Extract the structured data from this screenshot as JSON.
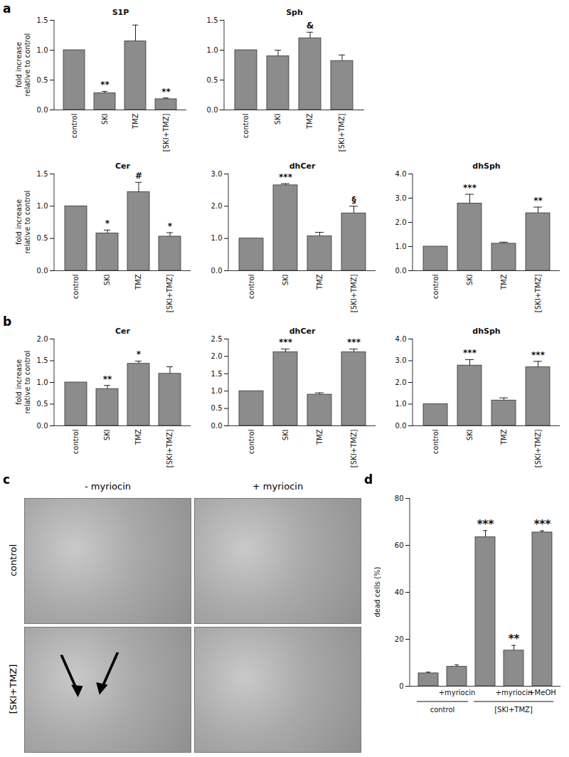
{
  "chart_data": [
    {
      "type": "bar",
      "title": "S1P",
      "y_label": "fold increase relative to control",
      "color": "#8c8c8c",
      "categories": [
        "control",
        "SKI",
        "TMZ",
        "[SKI+TMZ]"
      ],
      "values": [
        1.0,
        0.28,
        1.15,
        0.18
      ],
      "errors": [
        null,
        0.03,
        0.27,
        0.02
      ],
      "annotations": [
        null,
        "**",
        null,
        "**"
      ],
      "ylim": [
        0,
        1.5
      ],
      "yticks": [
        {
          "value": 0,
          "label": "0.0"
        },
        {
          "value": 0.5,
          "label": "0.5"
        },
        {
          "value": 1,
          "label": "1.0"
        },
        {
          "value": 1.5,
          "label": "1.5"
        }
      ]
    },
    {
      "type": "bar",
      "title": "Sph",
      "color": "#8c8c8c",
      "categories": [
        "control",
        "SKI",
        "TMZ",
        "[SKI+TMZ]"
      ],
      "values": [
        1.0,
        0.9,
        1.2,
        0.82
      ],
      "errors": [
        null,
        0.1,
        0.1,
        0.1
      ],
      "annotations": [
        null,
        null,
        "&",
        null
      ],
      "ylim": [
        0,
        1.5
      ],
      "yticks": [
        {
          "value": 0,
          "label": "0.0"
        },
        {
          "value": 0.5,
          "label": "0.5"
        },
        {
          "value": 1,
          "label": "1.0"
        },
        {
          "value": 1.5,
          "label": "1.5"
        }
      ]
    },
    {
      "type": "bar",
      "title": "Cer",
      "y_label": "fold increase relative to control",
      "color": "#8c8c8c",
      "categories": [
        "control",
        "SKI",
        "TMZ",
        "[SKI+TMZ]"
      ],
      "values": [
        1.0,
        0.58,
        1.22,
        0.53
      ],
      "errors": [
        null,
        0.05,
        0.15,
        0.06
      ],
      "annotations": [
        null,
        "*",
        "#",
        "*"
      ],
      "ylim": [
        0,
        1.5
      ],
      "yticks": [
        {
          "value": 0,
          "label": "0.0"
        },
        {
          "value": 0.5,
          "label": "0.5"
        },
        {
          "value": 1,
          "label": "1.0"
        },
        {
          "value": 1.5,
          "label": "1.5"
        }
      ]
    },
    {
      "type": "bar",
      "title": "dhCer",
      "color": "#8c8c8c",
      "categories": [
        "control",
        "SKI",
        "TMZ",
        "[SKI+TMZ]"
      ],
      "values": [
        1.0,
        2.65,
        1.07,
        1.78
      ],
      "errors": [
        null,
        0.05,
        0.12,
        0.22
      ],
      "annotations": [
        null,
        "***",
        null,
        "§"
      ],
      "ylim": [
        0,
        3
      ],
      "yticks": [
        {
          "value": 0,
          "label": "0.0"
        },
        {
          "value": 1,
          "label": "1.0"
        },
        {
          "value": 2,
          "label": "2.0"
        },
        {
          "value": 3,
          "label": "3.0"
        }
      ]
    },
    {
      "type": "bar",
      "title": "dhSph",
      "color": "#8c8c8c",
      "categories": [
        "control",
        "SKI",
        "TMZ",
        "[SKI+TMZ]"
      ],
      "values": [
        1.0,
        2.78,
        1.12,
        2.38
      ],
      "errors": [
        null,
        0.38,
        0.06,
        0.25
      ],
      "annotations": [
        null,
        "***",
        null,
        "**"
      ],
      "ylim": [
        0,
        4
      ],
      "yticks": [
        {
          "value": 0,
          "label": "0.0"
        },
        {
          "value": 1,
          "label": "1.0"
        },
        {
          "value": 2,
          "label": "2.0"
        },
        {
          "value": 3,
          "label": "3.0"
        },
        {
          "value": 4,
          "label": "4.0"
        }
      ]
    },
    {
      "type": "bar",
      "title": "Cer",
      "y_label": "fold increase relative to control",
      "color": "#8c8c8c",
      "categories": [
        "control",
        "SKI",
        "TMZ",
        "[SKI+TMZ]"
      ],
      "values": [
        1.0,
        0.85,
        1.43,
        1.2
      ],
      "errors": [
        null,
        0.08,
        0.06,
        0.16
      ],
      "annotations": [
        null,
        "**",
        "*",
        null
      ],
      "ylim": [
        0,
        2
      ],
      "yticks": [
        {
          "value": 0,
          "label": "0.0"
        },
        {
          "value": 0.5,
          "label": "0.5"
        },
        {
          "value": 1,
          "label": "1.0"
        },
        {
          "value": 1.5,
          "label": "1.5"
        },
        {
          "value": 2,
          "label": "2.0"
        }
      ]
    },
    {
      "type": "bar",
      "title": "dhCer",
      "color": "#8c8c8c",
      "categories": [
        "control",
        "SKI",
        "TMZ",
        "[SKI+TMZ]"
      ],
      "values": [
        1.0,
        2.12,
        0.9,
        2.12
      ],
      "errors": [
        null,
        0.09,
        0.05,
        0.09
      ],
      "annotations": [
        null,
        "***",
        null,
        "***"
      ],
      "ylim": [
        0,
        2.5
      ],
      "yticks": [
        {
          "value": 0,
          "label": "0.0"
        },
        {
          "value": 0.5,
          "label": "0.5"
        },
        {
          "value": 1,
          "label": "1.0"
        },
        {
          "value": 1.5,
          "label": "1.5"
        },
        {
          "value": 2,
          "label": "2.0"
        },
        {
          "value": 2.5,
          "label": "2.5"
        }
      ]
    },
    {
      "type": "bar",
      "title": "dhSph",
      "color": "#8c8c8c",
      "categories": [
        "control",
        "SKI",
        "TMZ",
        "[SKI+TMZ]"
      ],
      "values": [
        1.0,
        2.78,
        1.17,
        2.7
      ],
      "errors": [
        null,
        0.27,
        0.12,
        0.27
      ],
      "annotations": [
        null,
        "***",
        null,
        "***"
      ],
      "ylim": [
        0,
        4
      ],
      "yticks": [
        {
          "value": 0,
          "label": "0.0"
        },
        {
          "value": 1,
          "label": "1.0"
        },
        {
          "value": 2,
          "label": "2.0"
        },
        {
          "value": 3,
          "label": "3.0"
        },
        {
          "value": 4,
          "label": "4.0"
        }
      ]
    },
    {
      "type": "bar",
      "y_label": "dead cells (%)",
      "color": "#8c8c8c",
      "categories": [
        null,
        "+myriocin",
        null,
        "+myriocin",
        "+MeOH"
      ],
      "values": [
        5.5,
        8.3,
        63.5,
        15.2,
        65.5
      ],
      "errors": [
        0.5,
        0.8,
        2.8,
        2.2,
        0.7
      ],
      "annotations": [
        null,
        null,
        "***",
        "**",
        "***"
      ],
      "groups": [
        {
          "label": "control",
          "from": 0,
          "to": 1
        },
        {
          "label": "[SKI+TMZ]",
          "from": 2,
          "to": 4
        }
      ],
      "ylim": [
        0,
        80
      ],
      "yticks": [
        0,
        20,
        40,
        60,
        80
      ]
    }
  ],
  "micrographs": {
    "columns": [
      "- myriocin",
      "+ myriocin"
    ],
    "rows": [
      "control",
      "[SKI+TMZ]"
    ]
  },
  "panel_labels": [
    "a",
    "b",
    "c",
    "d"
  ]
}
